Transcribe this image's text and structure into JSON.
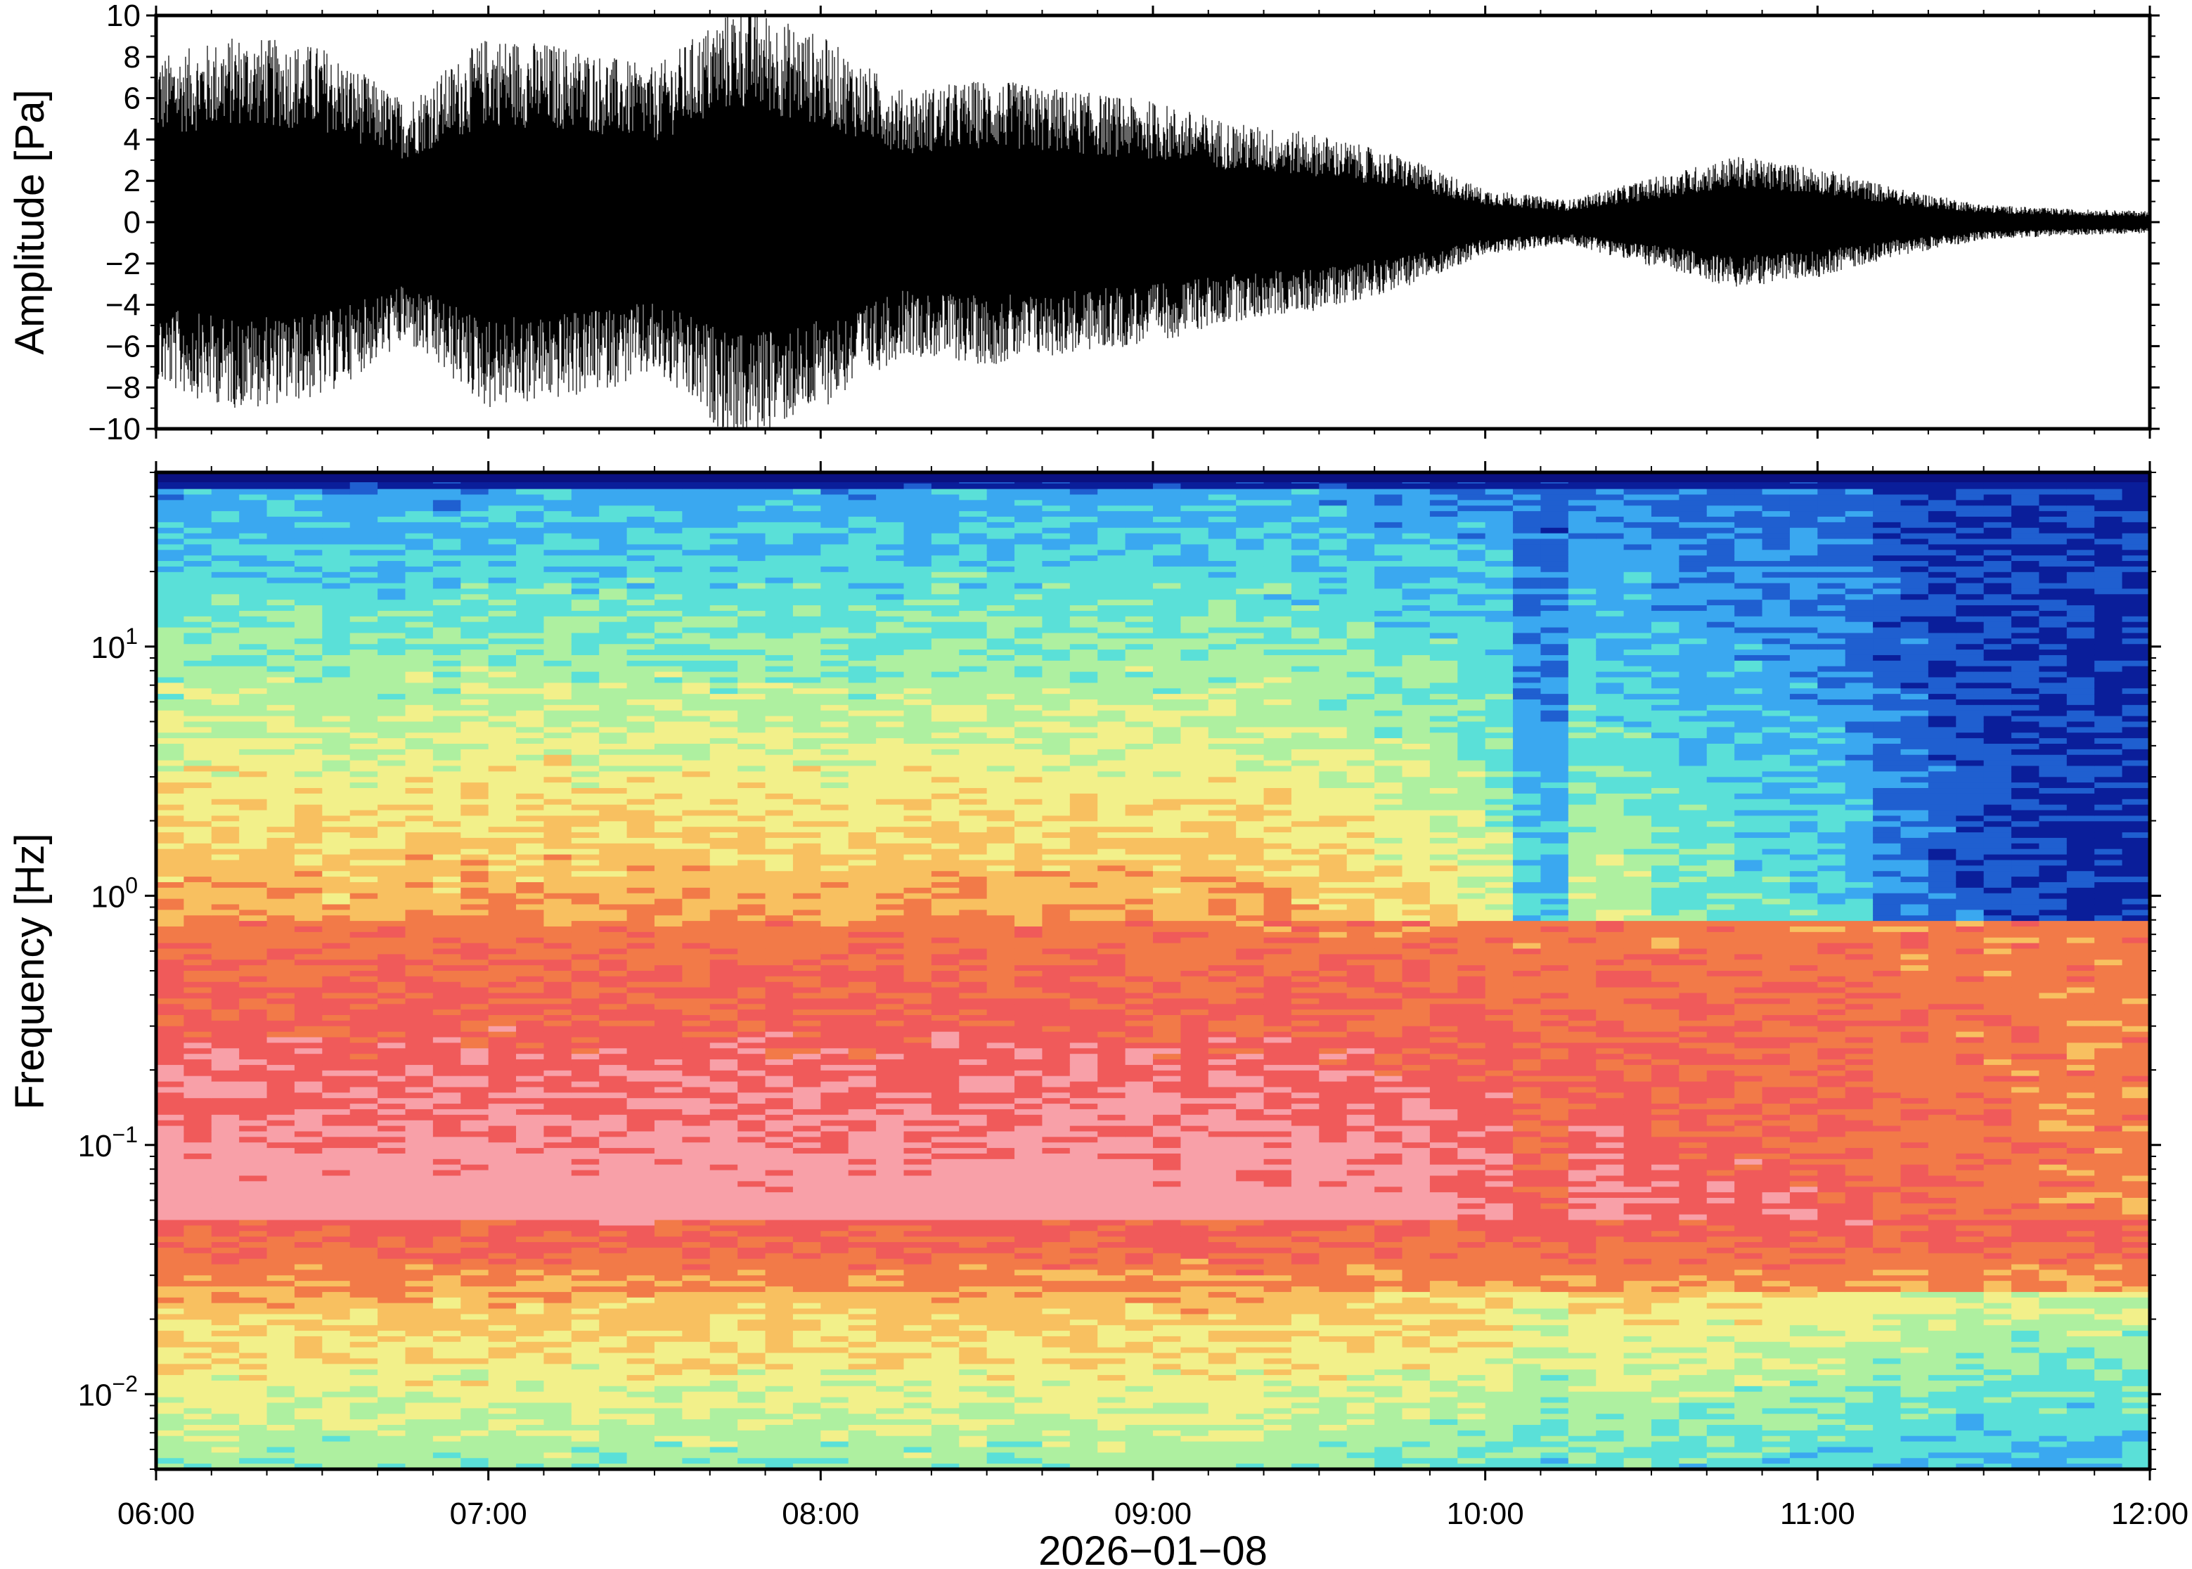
{
  "chart_data": [
    {
      "type": "line",
      "ylabel": "Amplitude [Pa]",
      "ylim": [
        -10,
        10
      ],
      "yticks": [
        "10",
        "8",
        "6",
        "4",
        "2",
        "0",
        "−2",
        "−4",
        "−6",
        "−8",
        "−10"
      ],
      "ytick_values": [
        10,
        8,
        6,
        4,
        2,
        0,
        -2,
        -4,
        -6,
        -8,
        -10
      ],
      "xlim_hours": [
        6,
        12
      ],
      "series": [
        {
          "values_note_free": true,
          "hour": [
            6.0,
            6.25,
            6.5,
            6.75,
            7.0,
            7.25,
            7.5,
            7.75,
            8.0,
            8.25,
            8.5,
            8.75,
            9.0,
            9.25,
            9.5,
            9.75,
            10.0,
            10.25,
            10.5,
            10.75,
            11.0,
            11.25,
            11.5,
            11.75,
            12.0
          ],
          "envelope_pa": [
            7.5,
            8.5,
            8.0,
            5.5,
            8.5,
            8.0,
            7.0,
            10.0,
            8.5,
            6.0,
            6.5,
            6.0,
            5.5,
            4.5,
            4.0,
            3.0,
            1.5,
            1.0,
            2.0,
            3.0,
            2.5,
            1.5,
            0.8,
            0.6,
            0.5
          ]
        }
      ]
    },
    {
      "type": "heatmap",
      "ylabel": "Frequency [Hz]",
      "xlabel": "2026−01−08",
      "yscale": "log",
      "ylim": [
        0.005,
        50
      ],
      "yticks": [
        {
          "base": "10",
          "exp": "1",
          "value": 10
        },
        {
          "base": "10",
          "exp": "0",
          "value": 1
        },
        {
          "base": "10",
          "exp": "−1",
          "value": 0.1
        },
        {
          "base": "10",
          "exp": "−2",
          "value": 0.01
        }
      ],
      "xticks": [
        "06:00",
        "07:00",
        "08:00",
        "09:00",
        "10:00",
        "11:00",
        "12:00"
      ],
      "xtick_hours": [
        6,
        7,
        8,
        9,
        10,
        11,
        12
      ],
      "colormap": [
        "#0a1e9a",
        "#1f5fd0",
        "#3aa8f0",
        "#5ae0d8",
        "#aef0a0",
        "#f2f08a",
        "#f8c060",
        "#f27a48",
        "#f05a5a",
        "#f8a0a8"
      ]
    }
  ]
}
